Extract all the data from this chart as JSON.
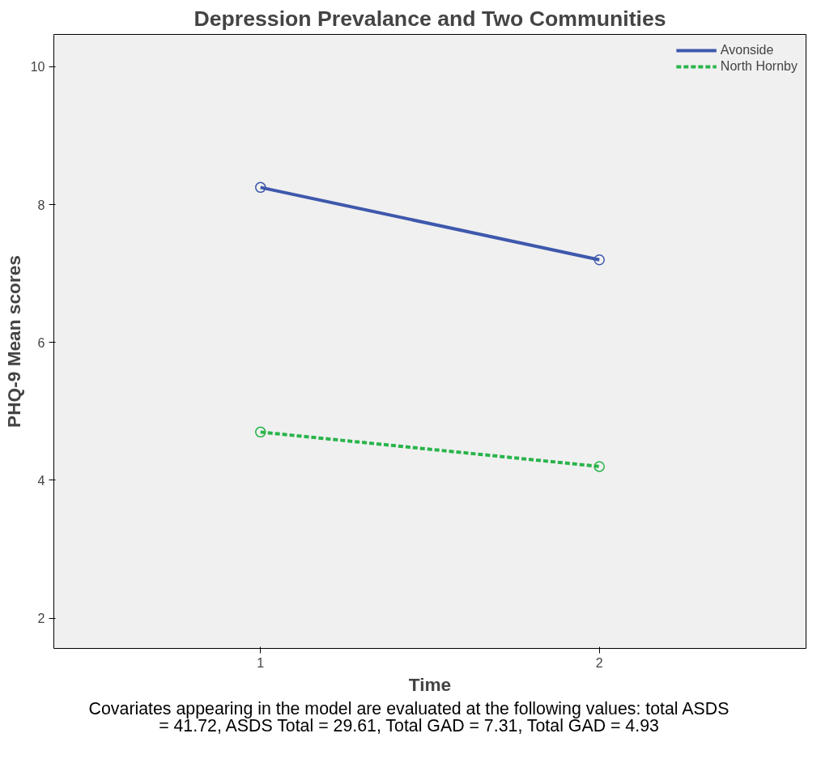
{
  "chart_data": {
    "type": "line",
    "title": "Depression Prevalance and Two Communities",
    "xlabel": "Time",
    "ylabel": "PHQ-9 Mean scores",
    "x": [
      1,
      2
    ],
    "series": [
      {
        "name": "Avonside",
        "color": "#3e58ac",
        "values": [
          8.25,
          7.2
        ],
        "line_style": "solid"
      },
      {
        "name": "North Hornby",
        "color": "#29b44a",
        "values": [
          4.7,
          4.2
        ],
        "line_style": "dashed"
      }
    ],
    "xlim": [
      0.39,
      2.61
    ],
    "ylim": [
      1.56,
      10.47
    ],
    "xticks": [
      1,
      2
    ],
    "yticks": [
      2,
      4,
      6,
      8,
      10
    ],
    "marker": "circle",
    "grid": false,
    "legend": "top right",
    "annotations": [
      "Covariates appearing in the model are evaluated at the following values: total ASDS\n= 41.72, ASDS Total = 29.61, Total GAD = 7.31, Total GAD = 4.93"
    ]
  }
}
